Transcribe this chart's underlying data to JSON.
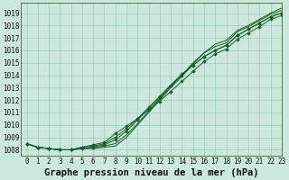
{
  "title": "Graphe pression niveau de la mer (hPa)",
  "background_color": "#cce8dc",
  "grid_color": "#99ccb8",
  "line_color": "#1a5c2a",
  "marker_color": "#1a5c2a",
  "xlim": [
    -0.5,
    23
  ],
  "ylim": [
    1007.5,
    1019.8
  ],
  "yticks": [
    1008,
    1009,
    1010,
    1011,
    1012,
    1013,
    1014,
    1015,
    1016,
    1017,
    1018,
    1019
  ],
  "xticks": [
    0,
    1,
    2,
    3,
    4,
    5,
    6,
    7,
    8,
    9,
    10,
    11,
    12,
    13,
    14,
    15,
    16,
    17,
    18,
    19,
    20,
    21,
    22,
    23
  ],
  "series": [
    {
      "y": [
        1008.5,
        1008.2,
        1008.1,
        1008.0,
        1008.0,
        1008.1,
        1008.1,
        1008.2,
        1008.3,
        1009.0,
        1010.0,
        1011.0,
        1012.0,
        1013.0,
        1013.9,
        1014.9,
        1015.8,
        1016.5,
        1016.8,
        1017.6,
        1018.0,
        1018.5,
        1019.0,
        1019.4
      ],
      "marker": false
    },
    {
      "y": [
        1008.5,
        1008.2,
        1008.1,
        1008.0,
        1008.0,
        1008.1,
        1008.2,
        1008.3,
        1008.5,
        1009.2,
        1010.1,
        1011.1,
        1012.1,
        1013.1,
        1014.0,
        1015.0,
        1015.8,
        1016.3,
        1016.6,
        1017.5,
        1017.9,
        1018.4,
        1018.9,
        1019.2
      ],
      "marker": false
    },
    {
      "y": [
        1008.5,
        1008.2,
        1008.1,
        1008.0,
        1008.0,
        1008.1,
        1008.2,
        1008.4,
        1008.8,
        1009.5,
        1010.4,
        1011.3,
        1012.2,
        1013.2,
        1014.1,
        1014.8,
        1015.5,
        1016.0,
        1016.4,
        1017.2,
        1017.7,
        1018.2,
        1018.7,
        1019.0
      ],
      "marker": true
    },
    {
      "y": [
        1008.5,
        1008.2,
        1008.1,
        1008.0,
        1008.0,
        1008.2,
        1008.3,
        1008.5,
        1009.0,
        1009.7,
        1010.5,
        1011.4,
        1012.3,
        1013.2,
        1014.0,
        1014.8,
        1015.5,
        1016.0,
        1016.4,
        1017.2,
        1017.7,
        1018.2,
        1018.7,
        1019.0
      ],
      "marker": true
    },
    {
      "y": [
        1008.5,
        1008.2,
        1008.1,
        1008.0,
        1008.0,
        1008.2,
        1008.4,
        1008.6,
        1009.3,
        1009.9,
        1010.5,
        1011.2,
        1011.9,
        1012.7,
        1013.5,
        1014.3,
        1015.1,
        1015.7,
        1016.1,
        1016.9,
        1017.4,
        1017.9,
        1018.5,
        1018.8
      ],
      "marker": true
    }
  ],
  "title_fontsize": 7.5,
  "tick_fontsize": 5.5
}
